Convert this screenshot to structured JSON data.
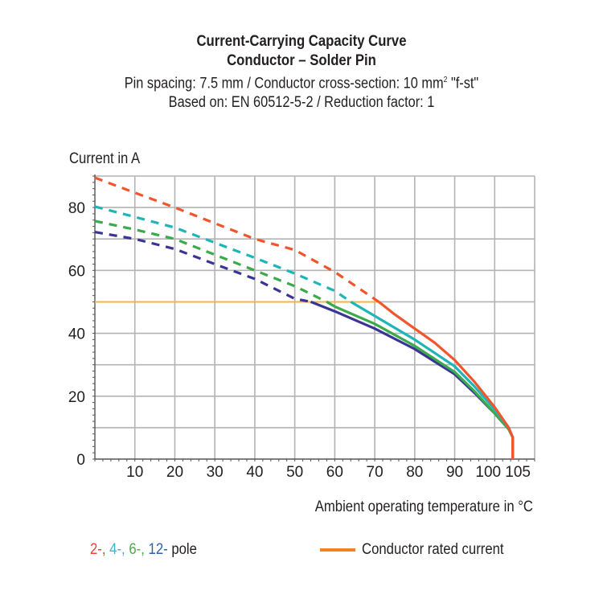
{
  "header": {
    "title": "Current-Carrying Capacity Curve",
    "subtitle": "Conductor – Solder Pin",
    "line3_prefix": "Pin spacing: 7.5 mm / Conductor cross-section: 10 mm",
    "line3_sup": "2",
    "line3_suffix": " \"f-st\"",
    "line4": "Based on: EN 60512-5-2 / Reduction factor: 1"
  },
  "legend": {
    "poles": [
      {
        "text": "2-",
        "color": "#ee4035"
      },
      {
        "text": ", ",
        "color": "#ee4035"
      },
      {
        "text": "4-",
        "color": "#39b9c6"
      },
      {
        "text": ", ",
        "color": "#39b9c6"
      },
      {
        "text": "6-",
        "color": "#49ad48"
      },
      {
        "text": ", ",
        "color": "#49ad48"
      },
      {
        "text": "12-",
        "color": "#2e5fa8"
      }
    ],
    "pole_suffix": " pole",
    "rated_label": "Conductor rated current",
    "rated_color": "#f58220"
  },
  "chart_data": {
    "type": "line",
    "title": "Current-Carrying Capacity Curve",
    "xlabel": "Ambient operating temperature in °C",
    "ylabel": "Current in A",
    "xlim": [
      0,
      110
    ],
    "ylim": [
      0,
      90
    ],
    "x_ticks": [
      10,
      20,
      30,
      40,
      50,
      60,
      70,
      80,
      90,
      100,
      105
    ],
    "x_tick_labels": [
      "10",
      "20",
      "30",
      "40",
      "50",
      "60",
      "70",
      "80",
      "90",
      "100",
      "105"
    ],
    "y_ticks": [
      0,
      20,
      40,
      60,
      80
    ],
    "y_tick_labels": [
      "0",
      "20",
      "40",
      "60",
      "80"
    ],
    "grid": true,
    "grid_x_step": 10,
    "grid_y_step": 10,
    "rated_current": {
      "name": "Conductor rated current",
      "value": 50,
      "color": "#fbb040"
    },
    "series": [
      {
        "name": "2-pole",
        "color": "#f0562d",
        "derating": {
          "x": [
            0,
            10,
            20,
            30,
            40,
            50,
            60,
            71
          ],
          "y": [
            89.5,
            84.7,
            80,
            75,
            70,
            66.5,
            59.5,
            50
          ]
        },
        "rated": {
          "x": [
            71,
            75,
            80,
            85,
            90,
            95,
            100,
            103.5,
            104.5,
            104.5
          ],
          "y": [
            50,
            46,
            41.5,
            37,
            31.5,
            24.5,
            16.5,
            10,
            7,
            0
          ]
        }
      },
      {
        "name": "4-pole",
        "color": "#1fb5b8",
        "derating": {
          "x": [
            0,
            10,
            20,
            30,
            40,
            50,
            60,
            64
          ],
          "y": [
            80.3,
            77,
            73.6,
            68.8,
            64,
            59,
            53.5,
            50
          ]
        },
        "rated": {
          "x": [
            64,
            70,
            80,
            90,
            95,
            100,
            103.5,
            104.5,
            104.5
          ],
          "y": [
            50,
            45.5,
            38,
            29.5,
            23,
            15.7,
            10,
            7,
            0
          ]
        }
      },
      {
        "name": "6-pole",
        "color": "#3aaa4a",
        "derating": {
          "x": [
            0,
            10,
            20,
            30,
            40,
            50,
            58
          ],
          "y": [
            75.7,
            73,
            70,
            65,
            60,
            55,
            50
          ]
        },
        "rated": {
          "x": [
            58,
            60,
            70,
            80,
            90,
            95,
            100,
            103.5,
            104.5,
            104.5
          ],
          "y": [
            50,
            48.5,
            43,
            36,
            27.7,
            21.5,
            14.5,
            9.5,
            7,
            0
          ]
        }
      },
      {
        "name": "12-pole",
        "color": "#3a3595",
        "derating": {
          "x": [
            0,
            10,
            20,
            30,
            40,
            50,
            54
          ],
          "y": [
            72.2,
            70,
            66.8,
            62,
            57.3,
            51,
            50
          ]
        },
        "rated": {
          "x": [
            54,
            60,
            70,
            80,
            90,
            95,
            100,
            103.5,
            104.5,
            104.5
          ],
          "y": [
            50,
            47,
            41.5,
            35,
            27,
            21,
            14.5,
            9.5,
            7,
            0
          ]
        }
      }
    ]
  }
}
